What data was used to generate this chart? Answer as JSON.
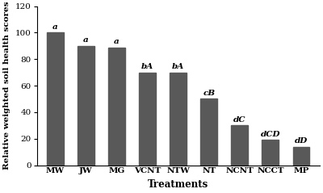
{
  "categories": [
    "MW",
    "JW",
    "MG",
    "VCNT",
    "NTW",
    "NT",
    "NCNT",
    "NCCT",
    "MP"
  ],
  "values": [
    100,
    90,
    89,
    70,
    70,
    50,
    30,
    19,
    14
  ],
  "labels": [
    "a",
    "a",
    "a",
    "bA",
    "bA",
    "cB",
    "dC",
    "dCD",
    "dD"
  ],
  "bar_color": "#595959",
  "xlabel": "Treatments",
  "ylabel": "Relative weighted soil health scores",
  "ylim": [
    0,
    120
  ],
  "yticks": [
    0,
    20,
    40,
    60,
    80,
    100,
    120
  ],
  "bar_width": 0.55,
  "label_fontsize": 7.5,
  "tick_fontsize": 7.5,
  "xlabel_fontsize": 8.5,
  "ylabel_fontsize": 7.5
}
